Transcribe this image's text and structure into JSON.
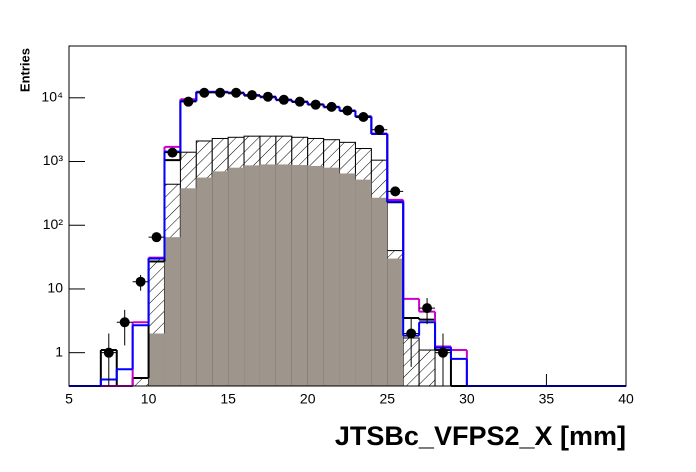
{
  "chart_data": {
    "type": "histogram",
    "x_label": "JTSBc_VFPS2_X [mm]",
    "y_label": "Entries",
    "log_y": true,
    "bins": [
      5,
      6,
      7,
      8,
      9,
      10,
      11,
      12,
      13,
      14,
      15,
      16,
      17,
      18,
      19,
      20,
      21,
      22,
      23,
      24,
      25,
      26,
      27,
      28,
      29,
      30,
      31,
      32,
      33,
      34,
      35,
      36,
      37,
      38,
      39,
      40
    ],
    "xlim": [
      5,
      40
    ],
    "xticks": [
      5,
      10,
      15,
      20,
      25,
      30,
      35,
      40
    ],
    "ylim": [
      0.3,
      65000
    ],
    "yticks": [
      1,
      10,
      {
        "value": 100,
        "label": "10²"
      },
      {
        "value": 1000,
        "label": "10³"
      },
      {
        "value": 10000,
        "label": "10⁴"
      }
    ],
    "series": [
      {
        "style": "hatched",
        "color": "#000000",
        "values": [
          0,
          0,
          0,
          0,
          0.4,
          30,
          440,
          1400,
          2100,
          2300,
          2400,
          2500,
          2500,
          2500,
          2400,
          2300,
          2200,
          2000,
          1600,
          1050,
          40,
          1.7,
          1.1,
          0,
          0,
          0,
          0,
          0,
          0,
          0,
          0,
          0,
          0,
          0,
          0
        ]
      },
      {
        "style": "filled",
        "color": "#9e958c",
        "values": [
          0,
          0,
          0,
          0,
          0,
          2,
          65,
          380,
          560,
          700,
          800,
          870,
          900,
          900,
          880,
          850,
          800,
          650,
          520,
          270,
          30,
          0,
          0,
          0,
          0,
          0,
          0,
          0,
          0,
          0,
          0,
          0,
          0,
          0,
          0
        ]
      },
      {
        "style": "step",
        "color": "#000000",
        "values": [
          0,
          0,
          1.1,
          0,
          0.4,
          27,
          1050,
          8800,
          12200,
          12200,
          11800,
          10800,
          10200,
          9200,
          8600,
          7800,
          7100,
          6200,
          5000,
          2700,
          230,
          3.5,
          3.3,
          1.1,
          0,
          0,
          0,
          0,
          0,
          0,
          0,
          0,
          0,
          0,
          0
        ]
      },
      {
        "style": "step",
        "color": "#cc00cc",
        "values": [
          0,
          0,
          0,
          0.3,
          3,
          31,
          1700,
          9500,
          12400,
          12400,
          12000,
          11000,
          10400,
          9300,
          8700,
          7900,
          7200,
          6300,
          5100,
          2750,
          250,
          7,
          4.4,
          1.25,
          1.1,
          0,
          0,
          0,
          0,
          0,
          0,
          0,
          0,
          0,
          0
        ]
      },
      {
        "style": "step",
        "color": "#0000ff",
        "values": [
          0,
          0,
          0.38,
          0.55,
          2.7,
          30,
          1430,
          9000,
          12400,
          12400,
          12000,
          11000,
          10400,
          9300,
          8700,
          7900,
          7200,
          6300,
          5100,
          2700,
          235,
          1.85,
          3,
          1.2,
          0.8,
          0,
          0,
          0,
          0,
          0,
          0,
          0,
          0,
          0,
          0
        ]
      },
      {
        "style": "points",
        "color": "#000000",
        "values": [
          null,
          null,
          1,
          3,
          13,
          65,
          1380,
          8700,
          12000,
          12000,
          12000,
          11000,
          10400,
          9300,
          8700,
          7800,
          7200,
          6300,
          5000,
          3150,
          340,
          2,
          5,
          1,
          null,
          null,
          null,
          null,
          null,
          null,
          null,
          null,
          null,
          null,
          null
        ],
        "errors": [
          null,
          null,
          1,
          1.7,
          3.6,
          8,
          37,
          93,
          110,
          110,
          110,
          105,
          102,
          96,
          93,
          88,
          85,
          79,
          71,
          56,
          18,
          1.4,
          2.2,
          1,
          null,
          null,
          null,
          null,
          null,
          null,
          null,
          null,
          null,
          null,
          null
        ]
      }
    ]
  }
}
